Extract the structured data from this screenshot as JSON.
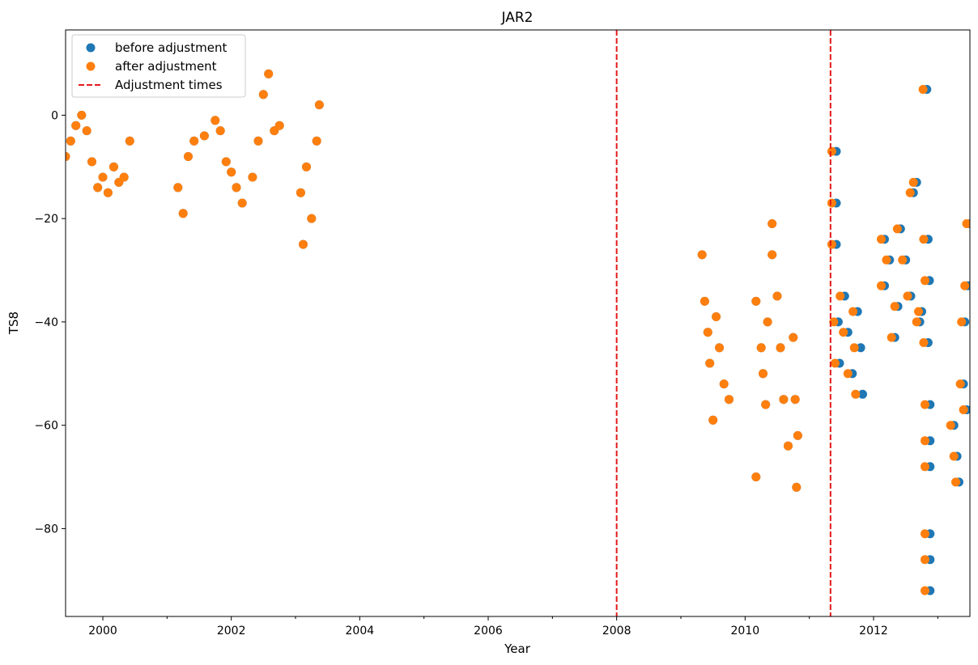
{
  "chart_data": {
    "type": "scatter",
    "title": "JAR2",
    "xlabel": "Year",
    "ylabel": "TS8",
    "xlim": [
      1999.42,
      2013.5
    ],
    "ylim": [
      -97,
      16.5
    ],
    "x_ticks": [
      2000,
      2002,
      2004,
      2006,
      2008,
      2010,
      2012
    ],
    "x_tick_labels": [
      "2000",
      "2002",
      "2004",
      "2006",
      "2008",
      "2010",
      "2012"
    ],
    "y_ticks": [
      0,
      -20,
      -40,
      -60,
      -80
    ],
    "y_tick_labels": [
      "0",
      "−20",
      "−40",
      "−60",
      "−80"
    ],
    "grid": false,
    "legend_position": "upper-left",
    "legend": [
      "before adjustment",
      "after adjustment",
      "Adjustment times"
    ],
    "colors": {
      "before": "#1f77b4",
      "after": "#ff7f0e",
      "adjustment": "#e41a1c"
    },
    "adjustment_times": [
      2008.0,
      2011.33
    ],
    "series": [
      {
        "name": "before adjustment",
        "points": [
          [
            1999.42,
            -8
          ],
          [
            1999.5,
            -5
          ],
          [
            1999.58,
            -2
          ],
          [
            1999.67,
            0
          ],
          [
            1999.75,
            -3
          ],
          [
            1999.83,
            -9
          ],
          [
            1999.92,
            -14
          ],
          [
            2000.0,
            -12
          ],
          [
            2000.08,
            -15
          ],
          [
            2000.17,
            -10
          ],
          [
            2000.25,
            -13
          ],
          [
            2000.33,
            -12
          ],
          [
            2000.42,
            -5
          ],
          [
            2001.17,
            -14
          ],
          [
            2001.25,
            -19
          ],
          [
            2001.33,
            -8
          ],
          [
            2001.42,
            -5
          ],
          [
            2001.58,
            -4
          ],
          [
            2001.75,
            -1
          ],
          [
            2001.83,
            -3
          ],
          [
            2001.92,
            -9
          ],
          [
            2002.0,
            -11
          ],
          [
            2002.08,
            -14
          ],
          [
            2002.17,
            -17
          ],
          [
            2002.33,
            -12
          ],
          [
            2002.42,
            -5
          ],
          [
            2002.5,
            4
          ],
          [
            2002.58,
            8
          ],
          [
            2002.67,
            -3
          ],
          [
            2002.75,
            -2
          ],
          [
            2003.08,
            -15
          ],
          [
            2003.12,
            -25
          ],
          [
            2003.17,
            -10
          ],
          [
            2003.25,
            -20
          ],
          [
            2003.33,
            -5
          ],
          [
            2003.37,
            2
          ],
          [
            2009.33,
            -27
          ],
          [
            2009.37,
            -36
          ],
          [
            2009.42,
            -42
          ],
          [
            2009.45,
            -48
          ],
          [
            2009.5,
            -59
          ],
          [
            2009.55,
            -39
          ],
          [
            2009.6,
            -45
          ],
          [
            2009.67,
            -52
          ],
          [
            2009.75,
            -55
          ],
          [
            2010.17,
            -36
          ],
          [
            2010.17,
            -70
          ],
          [
            2010.25,
            -45
          ],
          [
            2010.28,
            -50
          ],
          [
            2010.32,
            -56
          ],
          [
            2010.35,
            -40
          ],
          [
            2010.42,
            -21
          ],
          [
            2010.42,
            -27
          ],
          [
            2010.5,
            -35
          ],
          [
            2010.55,
            -45
          ],
          [
            2010.6,
            -55
          ],
          [
            2010.67,
            -64
          ],
          [
            2010.75,
            -43
          ],
          [
            2010.78,
            -55
          ],
          [
            2010.82,
            -62
          ],
          [
            2010.8,
            -72
          ],
          [
            2011.42,
            -7
          ],
          [
            2011.42,
            -17
          ],
          [
            2011.42,
            -25
          ],
          [
            2011.45,
            -40
          ],
          [
            2011.47,
            -48
          ],
          [
            2011.55,
            -35
          ],
          [
            2011.6,
            -42
          ],
          [
            2011.67,
            -50
          ],
          [
            2011.75,
            -38
          ],
          [
            2011.8,
            -45
          ],
          [
            2011.83,
            -54
          ],
          [
            2012.17,
            -24
          ],
          [
            2012.17,
            -33
          ],
          [
            2012.25,
            -28
          ],
          [
            2012.33,
            -43
          ],
          [
            2012.38,
            -37
          ],
          [
            2012.42,
            -22
          ],
          [
            2012.5,
            -28
          ],
          [
            2012.58,
            -35
          ],
          [
            2012.62,
            -15
          ],
          [
            2012.67,
            -13
          ],
          [
            2012.72,
            -40
          ],
          [
            2012.75,
            -38
          ],
          [
            2012.83,
            5
          ],
          [
            2012.85,
            -24
          ],
          [
            2012.87,
            -32
          ],
          [
            2012.85,
            -44
          ],
          [
            2012.88,
            -56
          ],
          [
            2012.88,
            -63
          ],
          [
            2012.88,
            -68
          ],
          [
            2012.88,
            -81
          ],
          [
            2012.88,
            -86
          ],
          [
            2012.88,
            -92
          ],
          [
            2013.25,
            -60
          ],
          [
            2013.3,
            -66
          ],
          [
            2013.33,
            -71
          ],
          [
            2013.4,
            -52
          ],
          [
            2013.42,
            -40
          ],
          [
            2013.45,
            -57
          ],
          [
            2013.47,
            -33
          ],
          [
            2013.5,
            -21
          ]
        ]
      },
      {
        "name": "after adjustment",
        "points": [
          [
            1999.42,
            -8
          ],
          [
            1999.5,
            -5
          ],
          [
            1999.58,
            -2
          ],
          [
            1999.67,
            0
          ],
          [
            1999.75,
            -3
          ],
          [
            1999.83,
            -9
          ],
          [
            1999.92,
            -14
          ],
          [
            2000.0,
            -12
          ],
          [
            2000.08,
            -15
          ],
          [
            2000.17,
            -10
          ],
          [
            2000.25,
            -13
          ],
          [
            2000.33,
            -12
          ],
          [
            2000.42,
            -5
          ],
          [
            2001.17,
            -14
          ],
          [
            2001.25,
            -19
          ],
          [
            2001.33,
            -8
          ],
          [
            2001.42,
            -5
          ],
          [
            2001.58,
            -4
          ],
          [
            2001.75,
            -1
          ],
          [
            2001.83,
            -3
          ],
          [
            2001.92,
            -9
          ],
          [
            2002.0,
            -11
          ],
          [
            2002.08,
            -14
          ],
          [
            2002.17,
            -17
          ],
          [
            2002.33,
            -12
          ],
          [
            2002.42,
            -5
          ],
          [
            2002.5,
            4
          ],
          [
            2002.58,
            8
          ],
          [
            2002.67,
            -3
          ],
          [
            2002.75,
            -2
          ],
          [
            2003.08,
            -15
          ],
          [
            2003.12,
            -25
          ],
          [
            2003.17,
            -10
          ],
          [
            2003.25,
            -20
          ],
          [
            2003.33,
            -5
          ],
          [
            2003.37,
            2
          ],
          [
            2009.33,
            -27
          ],
          [
            2009.37,
            -36
          ],
          [
            2009.42,
            -42
          ],
          [
            2009.45,
            -48
          ],
          [
            2009.5,
            -59
          ],
          [
            2009.55,
            -39
          ],
          [
            2009.6,
            -45
          ],
          [
            2009.67,
            -52
          ],
          [
            2009.75,
            -55
          ],
          [
            2010.17,
            -36
          ],
          [
            2010.17,
            -70
          ],
          [
            2010.25,
            -45
          ],
          [
            2010.28,
            -50
          ],
          [
            2010.32,
            -56
          ],
          [
            2010.35,
            -40
          ],
          [
            2010.42,
            -21
          ],
          [
            2010.42,
            -27
          ],
          [
            2010.5,
            -35
          ],
          [
            2010.55,
            -45
          ],
          [
            2010.6,
            -55
          ],
          [
            2010.67,
            -64
          ],
          [
            2010.75,
            -43
          ],
          [
            2010.78,
            -55
          ],
          [
            2010.82,
            -62
          ],
          [
            2010.8,
            -72
          ],
          [
            2011.35,
            -7
          ],
          [
            2011.35,
            -17
          ],
          [
            2011.35,
            -25
          ],
          [
            2011.38,
            -40
          ],
          [
            2011.4,
            -48
          ],
          [
            2011.48,
            -35
          ],
          [
            2011.53,
            -42
          ],
          [
            2011.6,
            -50
          ],
          [
            2011.68,
            -38
          ],
          [
            2011.7,
            -45
          ],
          [
            2011.72,
            -54
          ],
          [
            2012.12,
            -24
          ],
          [
            2012.12,
            -33
          ],
          [
            2012.2,
            -28
          ],
          [
            2012.28,
            -43
          ],
          [
            2012.33,
            -37
          ],
          [
            2012.37,
            -22
          ],
          [
            2012.45,
            -28
          ],
          [
            2012.53,
            -35
          ],
          [
            2012.57,
            -15
          ],
          [
            2012.62,
            -13
          ],
          [
            2012.67,
            -40
          ],
          [
            2012.7,
            -38
          ],
          [
            2012.77,
            5
          ],
          [
            2012.78,
            -24
          ],
          [
            2012.8,
            -32
          ],
          [
            2012.78,
            -44
          ],
          [
            2012.8,
            -56
          ],
          [
            2012.8,
            -63
          ],
          [
            2012.8,
            -68
          ],
          [
            2012.8,
            -81
          ],
          [
            2012.8,
            -86
          ],
          [
            2012.8,
            -92
          ],
          [
            2013.2,
            -60
          ],
          [
            2013.25,
            -66
          ],
          [
            2013.28,
            -71
          ],
          [
            2013.35,
            -52
          ],
          [
            2013.37,
            -40
          ],
          [
            2013.4,
            -57
          ],
          [
            2013.42,
            -33
          ],
          [
            2013.45,
            -21
          ]
        ]
      }
    ]
  }
}
